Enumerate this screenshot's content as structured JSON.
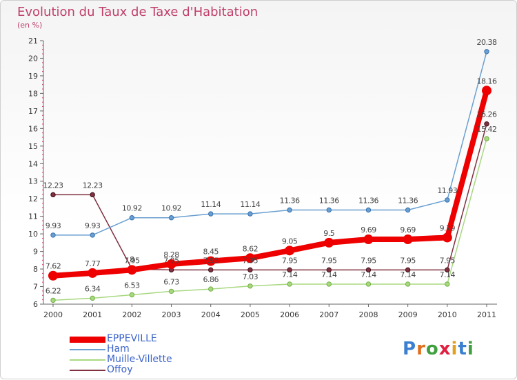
{
  "header": {
    "title": "Evolution du Taux de Taxe d'Habitation",
    "subtitle": "(en %)"
  },
  "logo": {
    "text": "Proxiti"
  },
  "chart_data": {
    "type": "line",
    "title": "Evolution du Taux de Taxe d'Habitation",
    "ylabel": "(en %)",
    "xlabel": "",
    "x": [
      "2000",
      "2001",
      "2002",
      "2003",
      "2004",
      "2005",
      "2006",
      "2007",
      "2008",
      "2009",
      "2010",
      "2011"
    ],
    "ylim": [
      6,
      21
    ],
    "yticks": [
      "6",
      "7",
      "8",
      "9",
      "10",
      "11",
      "12",
      "13",
      "14",
      "15",
      "16",
      "17",
      "18",
      "19",
      "20",
      "21"
    ],
    "grid": false,
    "legend": "bottom-left",
    "series": [
      {
        "name": "EPPEVILLE",
        "color": "#ee0000",
        "values": [
          7.62,
          7.77,
          7.95,
          8.28,
          8.45,
          8.62,
          9.05,
          9.5,
          9.69,
          9.69,
          9.79,
          18.16
        ],
        "labels": [
          "7.62",
          "7.77",
          "7.95",
          "8.28",
          "8.45",
          "8.62",
          "9.05",
          "9.5",
          "9.69",
          "9.69",
          "9.79",
          "18.16"
        ]
      },
      {
        "name": "Ham",
        "color": "#6a9fd0",
        "values": [
          9.93,
          9.93,
          10.92,
          10.92,
          11.14,
          11.14,
          11.36,
          11.36,
          11.36,
          11.36,
          11.93,
          20.38
        ],
        "labels": [
          "9.93",
          "9.93",
          "10.92",
          "10.92",
          "11.14",
          "11.14",
          "11.36",
          "11.36",
          "11.36",
          "11.36",
          "11.93",
          "20.38"
        ]
      },
      {
        "name": "Muille-Villette",
        "color": "#a8d880",
        "values": [
          6.22,
          6.34,
          6.53,
          6.73,
          6.86,
          7.03,
          7.14,
          7.14,
          7.14,
          7.14,
          7.14,
          15.42
        ],
        "labels": [
          "6.22",
          "6.34",
          "6.53",
          "6.73",
          "6.86",
          "7.03",
          "7.14",
          "7.14",
          "7.14",
          "7.14",
          "7.14",
          "15.42"
        ]
      },
      {
        "name": "Offoy",
        "color": "#803040",
        "values": [
          12.23,
          12.23,
          8.0,
          7.95,
          7.95,
          7.95,
          7.95,
          7.95,
          7.95,
          7.95,
          7.95,
          16.26
        ],
        "labels": [
          "12.23",
          "12.23",
          "8",
          "7.95",
          "7.95",
          "7.95",
          "7.95",
          "7.95",
          "7.95",
          "7.95",
          "7.95",
          "16.26"
        ]
      }
    ]
  }
}
